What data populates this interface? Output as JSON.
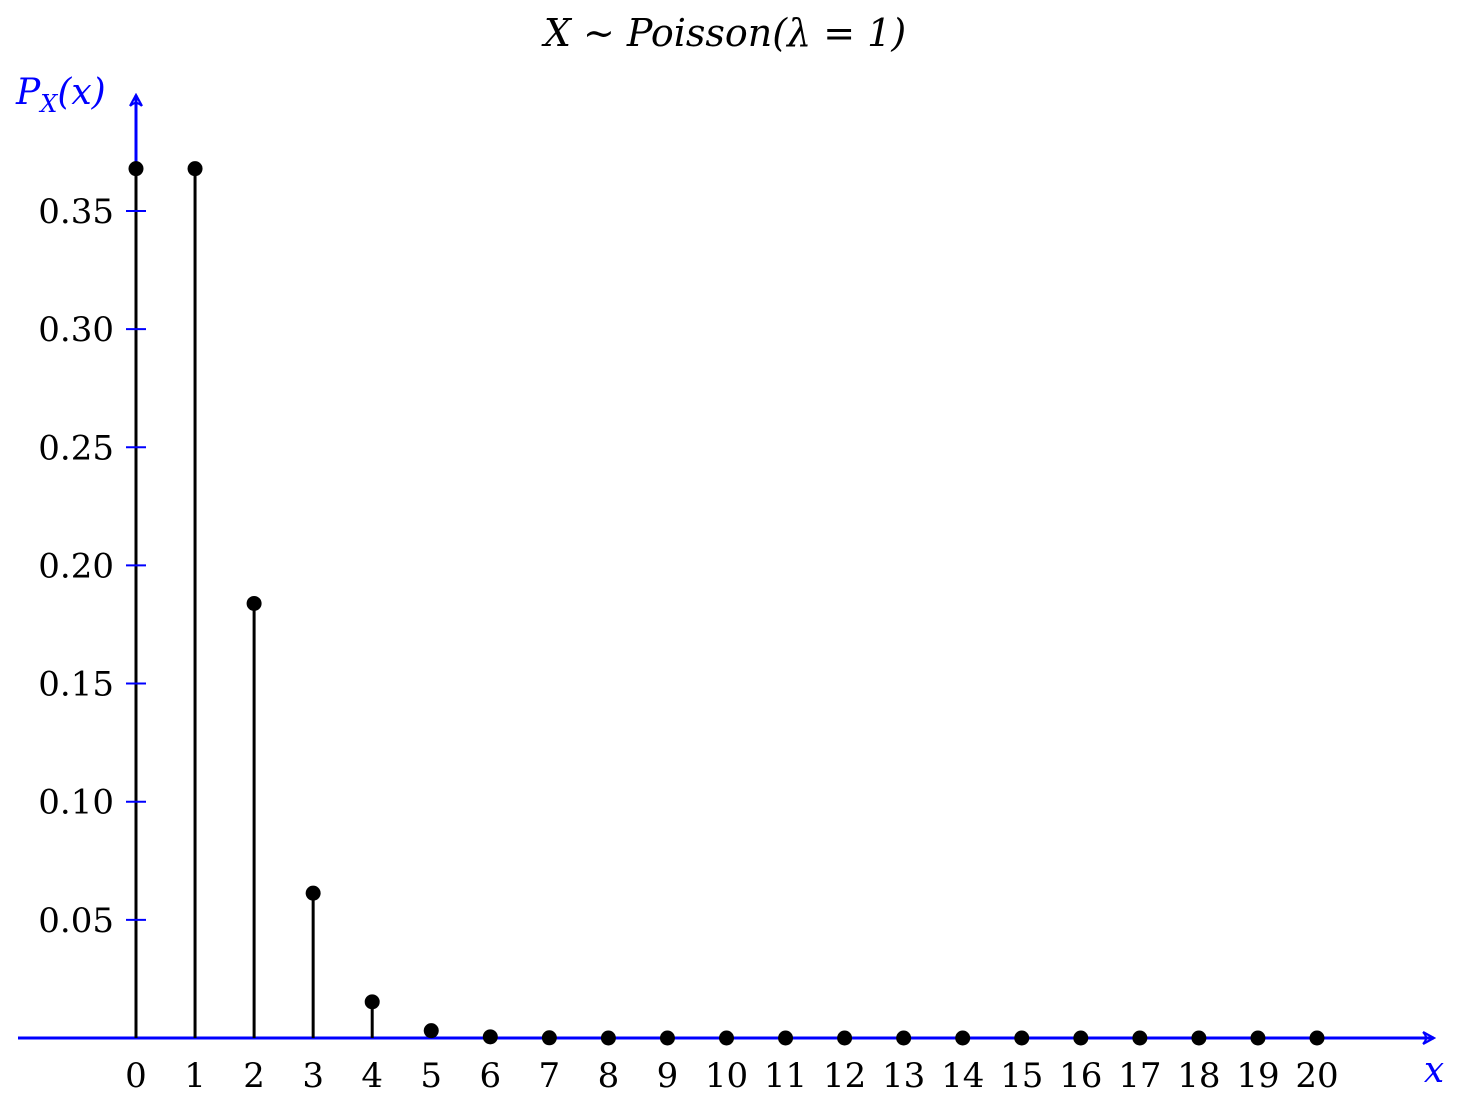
{
  "chart_data": {
    "type": "scatter",
    "subtype": "stem",
    "title": "X ∼ Poisson(λ = 1)",
    "xlabel": "x",
    "ylabel": "P_X(x)",
    "ylabel_main": "P",
    "ylabel_sub": "X",
    "ylabel_tail": "(x)",
    "xlim": [
      -2,
      20.4
    ],
    "ylim": [
      0,
      0.392
    ],
    "x_ticks": [
      0,
      1,
      2,
      3,
      4,
      5,
      6,
      7,
      8,
      9,
      10,
      11,
      12,
      13,
      14,
      15,
      16,
      17,
      18,
      19,
      20
    ],
    "y_ticks": [
      0.05,
      0.1,
      0.15,
      0.2,
      0.25,
      0.3,
      0.35
    ],
    "y_tick_labels": [
      "0.05",
      "0.10",
      "0.15",
      "0.20",
      "0.25",
      "0.30",
      "0.35"
    ],
    "grid": false,
    "series": [
      {
        "x": [
          0,
          1,
          2,
          3,
          4,
          5,
          6,
          7,
          8,
          9,
          10,
          11,
          12,
          13,
          14,
          15,
          16,
          17,
          18,
          19,
          20
        ],
        "values": [
          0.3679,
          0.3679,
          0.1839,
          0.0613,
          0.0153,
          0.0031,
          0.0005,
          0.0001,
          0.0,
          0.0,
          0.0,
          0.0,
          0.0,
          0.0,
          0.0,
          0.0,
          0.0,
          0.0,
          0.0,
          0.0,
          0.0
        ]
      }
    ],
    "colors": {
      "axis": "#0000ff",
      "stem": "#000000",
      "marker": "#000000"
    }
  }
}
